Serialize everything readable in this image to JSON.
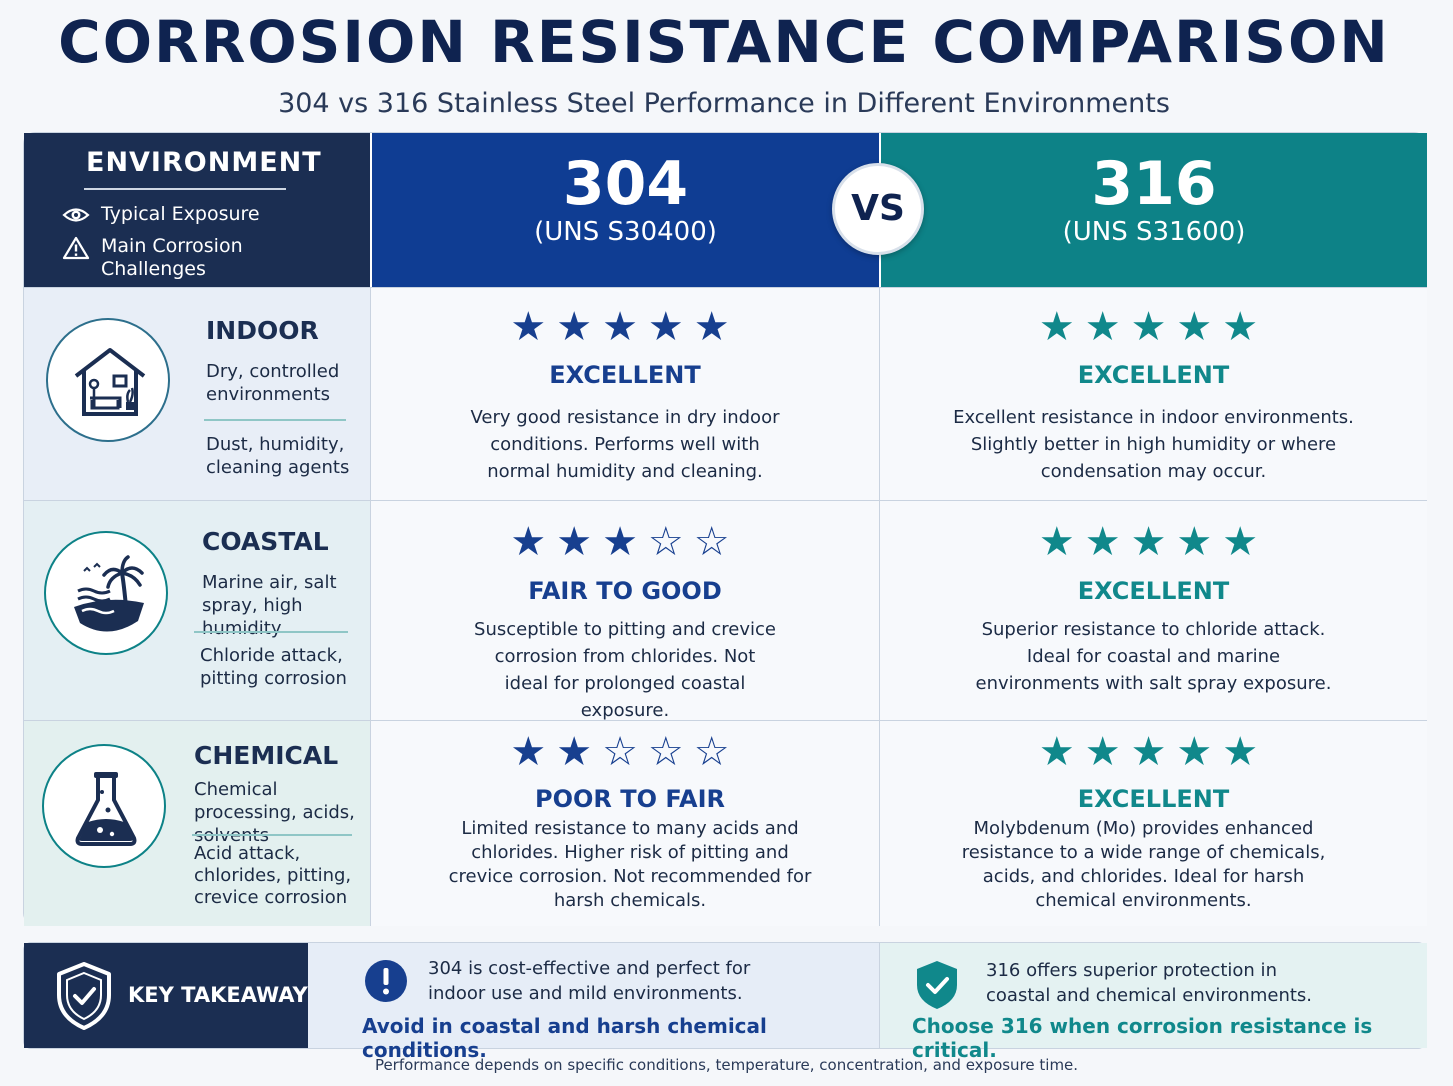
{
  "title": "CORROSION RESISTANCE COMPARISON",
  "subtitle": "304 vs 316 Stainless Steel Performance in Different Environments",
  "header": {
    "environment_title": "ENVIRONMENT",
    "legend": [
      {
        "icon": "eye-icon",
        "label": "Typical Exposure"
      },
      {
        "icon": "warning-icon",
        "label": "Main Corrosion Challenges"
      }
    ],
    "grade_304": {
      "number": "304",
      "uns": "(UNS S30400)"
    },
    "grade_316": {
      "number": "316",
      "uns": "(UNS S31600)"
    },
    "vs": "VS"
  },
  "rows": [
    {
      "icon": "house-icon",
      "name": "INDOOR",
      "exposure": "Dry, controlled environments",
      "challenges": "Dust, humidity, cleaning agents",
      "s304": {
        "stars": 5,
        "rating": "EXCELLENT",
        "description": "Very good resistance in dry indoor conditions. Performs well with normal humidity and cleaning."
      },
      "s316": {
        "stars": 5,
        "rating": "EXCELLENT",
        "description": "Excellent resistance in indoor environments. Slightly better in high humidity or where condensation may occur."
      }
    },
    {
      "icon": "palm-beach-icon",
      "name": "COASTAL",
      "exposure": "Marine air, salt spray, high humidity",
      "challenges": "Chloride attack, pitting corrosion",
      "s304": {
        "stars": 3,
        "rating": "FAIR TO GOOD",
        "description": "Susceptible to pitting and crevice corrosion from chlorides. Not ideal for prolonged coastal exposure."
      },
      "s316": {
        "stars": 5,
        "rating": "EXCELLENT",
        "description": "Superior resistance to chloride attack. Ideal for coastal and marine environments with salt spray exposure."
      }
    },
    {
      "icon": "flask-icon",
      "name": "CHEMICAL",
      "exposure": "Chemical processing, acids, solvents",
      "challenges": "Acid attack, chlorides, pitting, crevice corrosion",
      "s304": {
        "stars": 2,
        "rating": "POOR TO FAIR",
        "description": "Limited resistance to many acids and chlorides. Higher risk of pitting and crevice corrosion. Not recommended for harsh chemicals."
      },
      "s316": {
        "stars": 5,
        "rating": "EXCELLENT",
        "description": "Molybdenum (Mo) provides enhanced resistance to a wide range of chemicals, acids, and chlorides. Ideal for harsh chemical environments."
      }
    }
  ],
  "takeaway": {
    "label": "KEY TAKEAWAY",
    "left_text": "304 is cost-effective and perfect for indoor use and mild environments.",
    "left_bold": "Avoid in coastal and harsh chemical conditions.",
    "right_text": "316 offers superior protection in coastal and chemical environments.",
    "right_bold": "Choose 316 when corrosion resistance is critical."
  },
  "footnote": "Performance depends on specific conditions, temperature, concentration, and exposure time.",
  "colors": {
    "navy": "#1b2e52",
    "blue_304": "#0f3d93",
    "teal_316": "#0d8287",
    "star_blue": "#173f8f",
    "star_teal": "#10888b"
  }
}
